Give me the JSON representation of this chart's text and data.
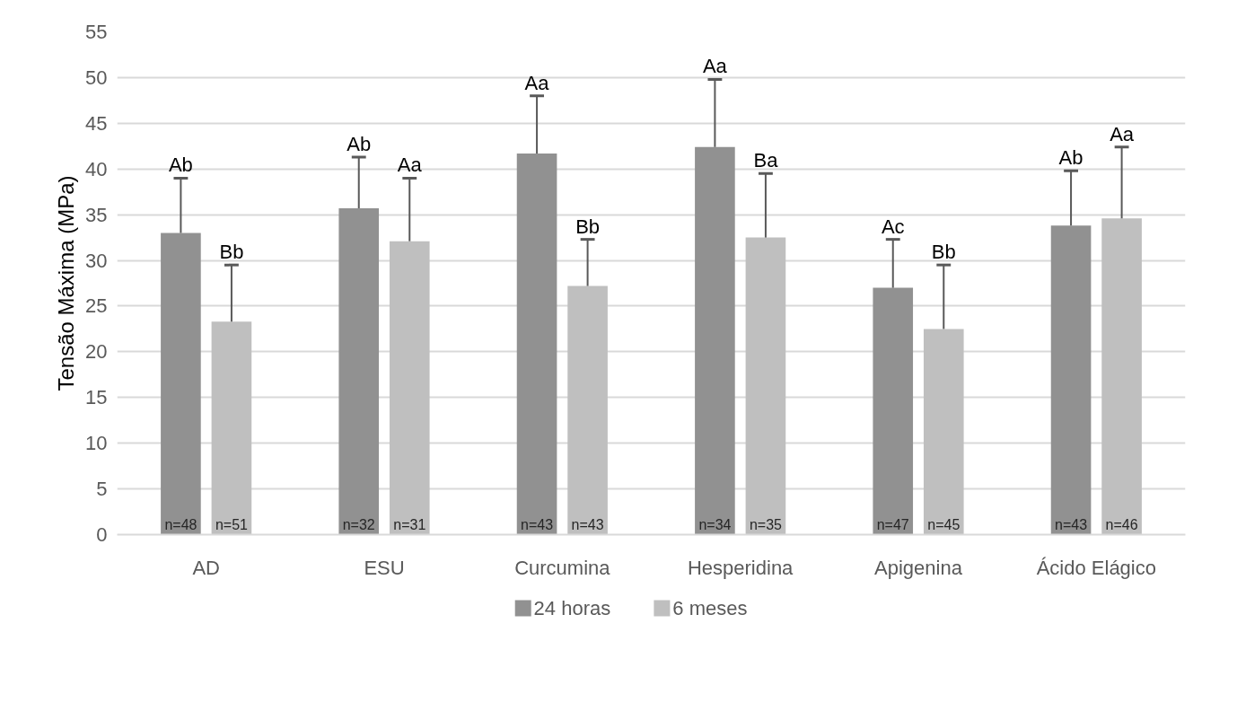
{
  "chart_data": {
    "type": "bar",
    "ylabel": "Tensão Máxima (MPa)",
    "categories": [
      "AD",
      "ESU",
      "Curcumina",
      "Hesperidina",
      "Apigenina",
      "Ácido Elágico"
    ],
    "series": [
      {
        "name": "24 horas",
        "color": "#919191",
        "values": [
          33.0,
          35.7,
          41.7,
          42.4,
          27.0,
          33.8
        ],
        "errors": [
          [
            33.0,
            39.0
          ],
          [
            35.7,
            41.3
          ],
          [
            41.7,
            48.0
          ],
          [
            42.4,
            49.8
          ],
          [
            27.0,
            32.3
          ],
          [
            33.8,
            39.8
          ]
        ]
      },
      {
        "name": "6 meses",
        "color": "#bfbfbf",
        "values": [
          23.3,
          32.1,
          27.2,
          32.5,
          22.5,
          34.6
        ],
        "errors": [
          [
            23.3,
            29.5
          ],
          [
            32.1,
            39.0
          ],
          [
            27.2,
            32.3
          ],
          [
            32.5,
            39.5
          ],
          [
            22.5,
            29.5
          ],
          [
            34.6,
            42.4
          ]
        ]
      }
    ],
    "ylim": [
      0,
      55
    ],
    "yticks": [
      0,
      5,
      10,
      15,
      20,
      25,
      30,
      35,
      40,
      45,
      50,
      55
    ],
    "grid": "y",
    "legend": "bottom",
    "annotations": [
      "Ab",
      "Bb",
      "Ab",
      "Aa",
      "Aa",
      "Bb",
      "Aa",
      "Ba",
      "Ac",
      "Bb",
      "Ab",
      "Aa",
      "n=48",
      "n=51",
      "n=32",
      "n=31",
      "n=43",
      "n=43",
      "n=34",
      "n=35",
      "n=47",
      "n=45",
      "n=43",
      "n=46"
    ]
  }
}
